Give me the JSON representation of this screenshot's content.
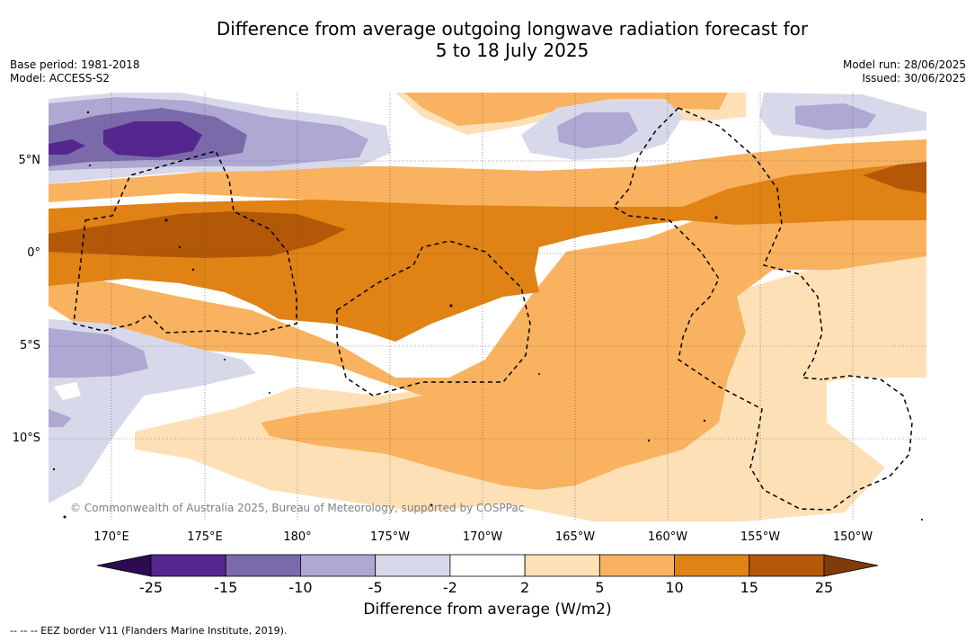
{
  "title": {
    "line1": "Difference from average outgoing longwave radiation forecast for",
    "line2": "5 to 18 July 2025"
  },
  "meta_left": {
    "base_period": "Base period: 1981-2018",
    "model": "Model: ACCESS-S2"
  },
  "meta_right": {
    "model_run": "Model run: 28/06/2025",
    "issued": "Issued: 30/06/2025"
  },
  "map": {
    "lat_labels": [
      "5°N",
      "0°",
      "5°S",
      "10°S"
    ],
    "lon_labels": [
      "170°E",
      "175°E",
      "180°",
      "175°W",
      "170°W",
      "165°W",
      "160°W",
      "155°W",
      "150°W"
    ],
    "credit": "© Commonwealth of Australia 2025, Bureau of Meteorology, supported by COSPPac"
  },
  "colorbar": {
    "ticks": [
      "-25",
      "-15",
      "-10",
      "-5",
      "-2",
      "2",
      "5",
      "10",
      "15",
      "25"
    ],
    "colors": [
      "#2d0a52",
      "#54278f",
      "#7b6aaa",
      "#aea8d3",
      "#d8d8eb",
      "#ffffff",
      "#fee0b6",
      "#f9b25f",
      "#e08214",
      "#b35806",
      "#7f3b08"
    ],
    "label": "Difference from average (W/m2)"
  },
  "legend_note": "--  --  -- EEZ border V11 (Flanders Marine Institute, 2019)."
}
